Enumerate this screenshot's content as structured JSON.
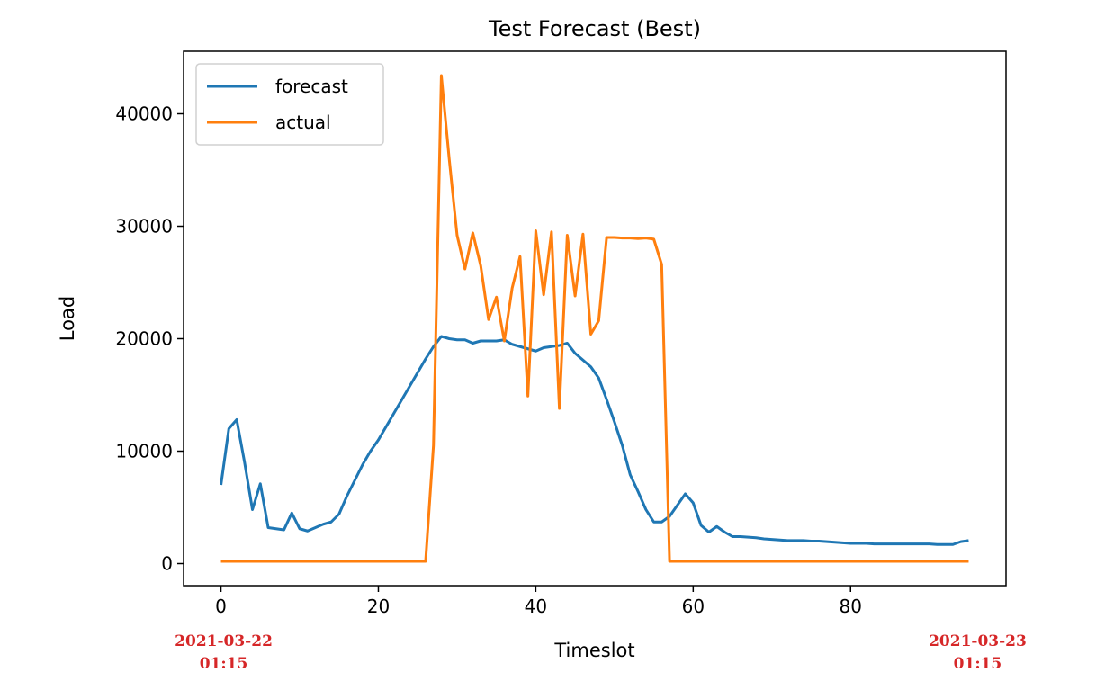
{
  "chart_data": {
    "type": "line",
    "title": "Test Forecast (Best)",
    "xlabel": "Timeslot",
    "ylabel": "Load",
    "x": [
      0,
      1,
      2,
      3,
      4,
      5,
      6,
      7,
      8,
      9,
      10,
      11,
      12,
      13,
      14,
      15,
      16,
      17,
      18,
      19,
      20,
      21,
      22,
      23,
      24,
      25,
      26,
      27,
      28,
      29,
      30,
      31,
      32,
      33,
      34,
      35,
      36,
      37,
      38,
      39,
      40,
      41,
      42,
      43,
      44,
      45,
      46,
      47,
      48,
      49,
      50,
      51,
      52,
      53,
      54,
      55,
      56,
      57,
      58,
      59,
      60,
      61,
      62,
      63,
      64,
      65,
      66,
      67,
      68,
      69,
      70,
      71,
      72,
      73,
      74,
      75,
      76,
      77,
      78,
      79,
      80,
      81,
      82,
      83,
      84,
      85,
      86,
      87,
      88,
      89,
      90,
      91,
      92,
      93,
      94,
      95
    ],
    "series": [
      {
        "name": "forecast",
        "color": "#1f77b4",
        "values": [
          7000,
          12000,
          12800,
          9000,
          4800,
          7100,
          3200,
          3100,
          3000,
          4500,
          3100,
          2900,
          3200,
          3500,
          3700,
          4400,
          6000,
          7400,
          8800,
          10000,
          11000,
          12200,
          13400,
          14600,
          15800,
          17000,
          18200,
          19300,
          20200,
          20000,
          19900,
          19900,
          19600,
          19800,
          19800,
          19800,
          19900,
          19500,
          19300,
          19100,
          18900,
          19200,
          19300,
          19400,
          19600,
          18700,
          18100,
          17500,
          16500,
          14600,
          12600,
          10500,
          7900,
          6400,
          4800,
          3700,
          3700,
          4200,
          5200,
          6200,
          5400,
          3400,
          2800,
          3300,
          2800,
          2400,
          2400,
          2350,
          2300,
          2200,
          2150,
          2100,
          2050,
          2050,
          2050,
          2000,
          2000,
          1950,
          1900,
          1850,
          1800,
          1800,
          1800,
          1750,
          1750,
          1750,
          1750,
          1750,
          1750,
          1750,
          1750,
          1700,
          1700,
          1700,
          1950,
          2050
        ]
      },
      {
        "name": "actual",
        "color": "#ff7f0e",
        "values": [
          200,
          200,
          200,
          200,
          200,
          200,
          200,
          200,
          200,
          200,
          200,
          200,
          200,
          200,
          200,
          200,
          200,
          200,
          200,
          200,
          200,
          200,
          200,
          200,
          200,
          200,
          200,
          10500,
          43400,
          36000,
          29200,
          26200,
          29400,
          26500,
          21700,
          23700,
          19800,
          24500,
          27300,
          14900,
          29600,
          23900,
          29500,
          13800,
          29200,
          23800,
          29300,
          20400,
          21600,
          29000,
          29000,
          28950,
          28950,
          28900,
          28950,
          28850,
          26600,
          200,
          200,
          200,
          200,
          200,
          200,
          200,
          200,
          200,
          200,
          200,
          200,
          200,
          200,
          200,
          200,
          200,
          200,
          200,
          200,
          200,
          200,
          200,
          200,
          200,
          200,
          200,
          200,
          200,
          200,
          200,
          200,
          200,
          200,
          200,
          200,
          200,
          200,
          200
        ]
      }
    ],
    "xlim": [
      -4.75,
      99.75
    ],
    "xticks": [
      0,
      20,
      40,
      60,
      80
    ],
    "ylim": [
      -1960,
      45560
    ],
    "yticks": [
      0,
      10000,
      20000,
      30000,
      40000
    ],
    "legend": "upper left",
    "annotations": [
      {
        "x": 0,
        "lines": [
          "2021-03-22",
          "01:15"
        ],
        "color": "#d62728"
      },
      {
        "x": 95,
        "lines": [
          "2021-03-23",
          "01:15"
        ],
        "color": "#d62728"
      }
    ]
  }
}
